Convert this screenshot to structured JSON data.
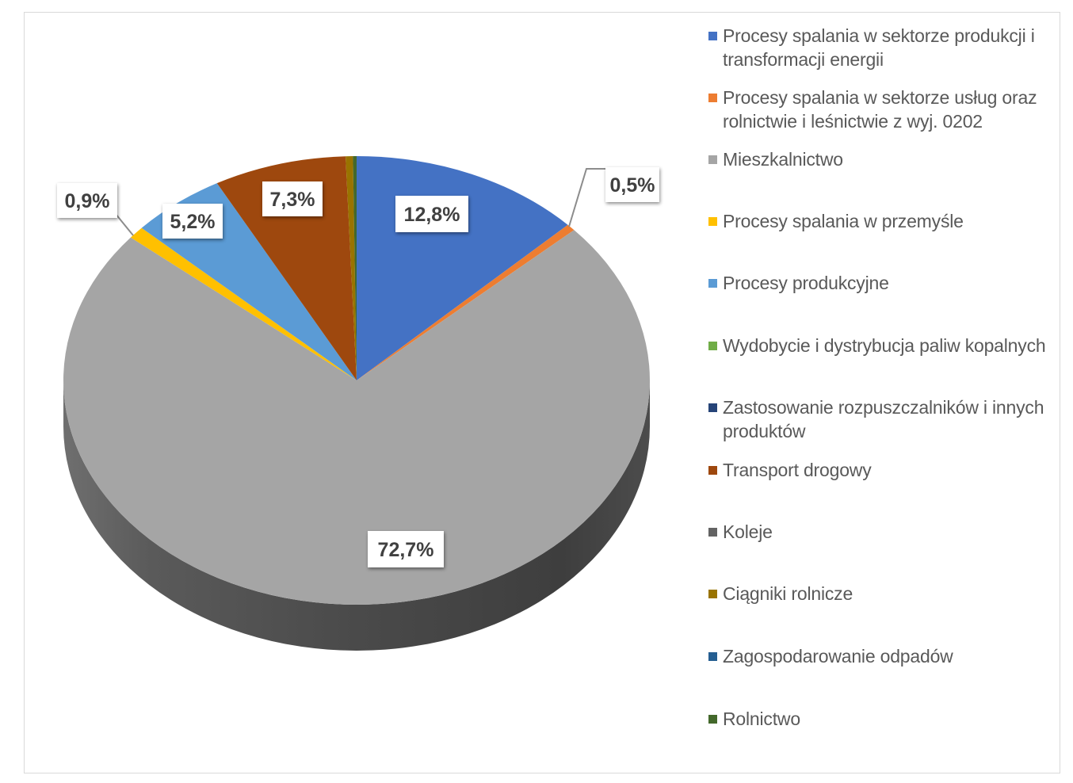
{
  "chart_data": {
    "type": "pie",
    "style": "3d",
    "legend_position": "right",
    "slices": [
      {
        "name": "Procesy spalania w sektorze produkcji i transformacji energii",
        "value": 12.8,
        "label": "12,8%",
        "color": "#4472c4"
      },
      {
        "name": "Procesy spalania w sektorze usług oraz rolnictwie i leśnictwie z wyj. 0202",
        "value": 0.5,
        "label": "0,5%",
        "color": "#ed7d31"
      },
      {
        "name": "Mieszkalnictwo",
        "value": 72.7,
        "label": "72,7%",
        "color": "#a5a5a5"
      },
      {
        "name": "Procesy spalania w przemyśle",
        "value": 0.9,
        "label": "0,9%",
        "color": "#ffc000"
      },
      {
        "name": "Procesy produkcyjne",
        "value": 5.2,
        "label": "5,2%",
        "color": "#5b9bd5"
      },
      {
        "name": "Wydobycie i dystrybucja paliw kopalnych",
        "value": 0.0,
        "label": "",
        "color": "#70ad47"
      },
      {
        "name": "Zastosowanie rozpuszczalników i innych produktów",
        "value": 0.0,
        "label": "",
        "color": "#264478"
      },
      {
        "name": "Transport drogowy",
        "value": 7.3,
        "label": "7,3%",
        "color": "#9e480e"
      },
      {
        "name": "Koleje",
        "value": 0.0,
        "label": "",
        "color": "#636363"
      },
      {
        "name": "Ciągniki rolnicze",
        "value": 0.4,
        "label": "",
        "color": "#997300"
      },
      {
        "name": "Zagospodarowanie odpadów",
        "value": 0.0,
        "label": "",
        "color": "#255e91"
      },
      {
        "name": "Rolnictwo",
        "value": 0.2,
        "label": "",
        "color": "#43682b"
      }
    ]
  },
  "legend": {
    "items": [
      {
        "label": "Procesy spalania w sektorze produkcji i transformacji energii",
        "color": "#4472c4"
      },
      {
        "label": "Procesy spalania w sektorze usług oraz rolnictwie i leśnictwie z wyj. 0202",
        "color": "#ed7d31"
      },
      {
        "label": "Mieszkalnictwo",
        "color": "#a5a5a5"
      },
      {
        "label": "Procesy spalania w przemyśle",
        "color": "#ffc000"
      },
      {
        "label": "Procesy produkcyjne",
        "color": "#5b9bd5"
      },
      {
        "label": "Wydobycie i dystrybucja paliw kopalnych",
        "color": "#70ad47"
      },
      {
        "label": "Zastosowanie rozpuszczalników i innych produktów",
        "color": "#264478"
      },
      {
        "label": "Transport drogowy",
        "color": "#9e480e"
      },
      {
        "label": "Koleje",
        "color": "#636363"
      },
      {
        "label": "Ciągniki rolnicze",
        "color": "#997300"
      },
      {
        "label": "Zagospodarowanie odpadów",
        "color": "#255e91"
      },
      {
        "label": "Rolnictwo",
        "color": "#43682b"
      }
    ]
  }
}
